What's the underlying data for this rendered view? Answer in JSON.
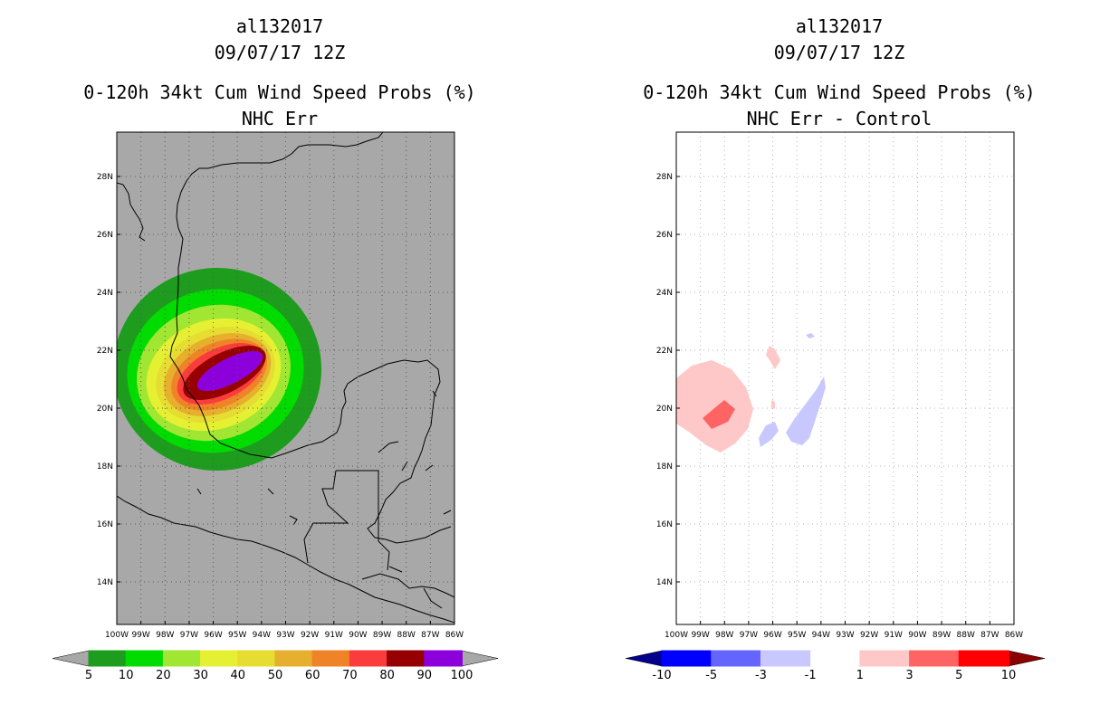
{
  "panels": [
    {
      "storm_id": "al132017",
      "datetime": "09/07/17 12Z",
      "product": "0-120h 34kt Cum Wind Speed Probs (%)",
      "subtitle": "NHC Err",
      "background": "#a8a8a8",
      "colorbar": {
        "labels": [
          "5",
          "10",
          "20",
          "30",
          "40",
          "50",
          "60",
          "70",
          "80",
          "90",
          "100"
        ],
        "colors": [
          "#1e9c1e",
          "#00dc00",
          "#a0e632",
          "#e6f032",
          "#e6dc32",
          "#e6af2d",
          "#f08228",
          "#fa3c3c",
          "#960000",
          "#8c00dc"
        ],
        "under_color": "#a8a8a8",
        "over_color": "#a8a8a8"
      }
    },
    {
      "storm_id": "al132017",
      "datetime": "09/07/17 12Z",
      "product": "0-120h 34kt Cum Wind Speed Probs (%)",
      "subtitle": "NHC Err - Control",
      "background": "#ffffff",
      "colorbar": {
        "labels": [
          "-10",
          "-5",
          "-3",
          "-1",
          "1",
          "3",
          "5",
          "10"
        ],
        "colors": [
          "#0000ff",
          "#6464ff",
          "#c8c8ff",
          "#ffffff",
          "#ffc8c8",
          "#ff6464",
          "#ff0000"
        ],
        "under_color": "#00008c",
        "over_color": "#8c0000"
      }
    }
  ],
  "axes": {
    "lat_labels": [
      "28N",
      "26N",
      "24N",
      "22N",
      "20N",
      "18N",
      "16N",
      "14N"
    ],
    "lon_labels": [
      "100W",
      "99W",
      "98W",
      "97W",
      "96W",
      "95W",
      "94W",
      "93W",
      "92W",
      "91W",
      "90W",
      "89W",
      "88W",
      "87W",
      "86W"
    ]
  }
}
